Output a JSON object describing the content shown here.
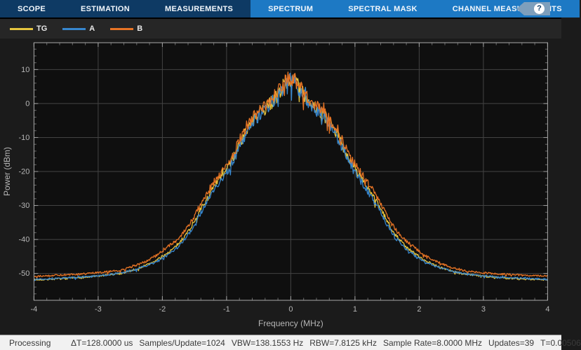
{
  "toolbar": {
    "tabs_inactive_left": [
      {
        "label": "SCOPE"
      },
      {
        "label": "ESTIMATION"
      },
      {
        "label": "MEASUREMENTS"
      }
    ],
    "tabs_active_group": [
      {
        "label": "SPECTRUM"
      },
      {
        "label": "SPECTRAL MASK"
      },
      {
        "label": "CHANNEL MEASUREMENTS"
      }
    ],
    "help_label": "?",
    "bg_color": "#0e3a64",
    "active_bg_color": "#1d79c4"
  },
  "legend": {
    "items": [
      {
        "label": "TG",
        "color": "#e7c63f"
      },
      {
        "label": "A",
        "color": "#3787cf"
      },
      {
        "label": "B",
        "color": "#e87425"
      }
    ]
  },
  "chart_data": {
    "type": "line",
    "title": "",
    "xlabel": "Frequency (MHz)",
    "ylabel": "Power (dBm)",
    "xlim": [
      -4,
      4
    ],
    "ylim": [
      -57.9,
      17.9
    ],
    "x_ticks": [
      -4,
      -3,
      -2,
      -1,
      0,
      1,
      2,
      3,
      4
    ],
    "y_ticks": [
      10,
      0,
      -10,
      -20,
      -30,
      -40,
      -50
    ],
    "x_minor_step": 0.2,
    "y_minor_step": 2,
    "grid": true,
    "legend_position": "top-left-bar",
    "plot_bg": "#0f0f0f",
    "grid_color": "#434343",
    "frame_color": "#a8a8a8",
    "tick_color": "#9e9e9e",
    "minor_tick_color": "#6a6a6a",
    "label_color": "#b6b6b6",
    "base_envelope": [
      [
        -4.0,
        -51.7
      ],
      [
        -3.6,
        -51.4
      ],
      [
        -3.2,
        -51.0
      ],
      [
        -2.9,
        -50.5
      ],
      [
        -2.65,
        -49.9
      ],
      [
        -2.45,
        -49.0
      ],
      [
        -2.25,
        -47.8
      ],
      [
        -2.1,
        -46.6
      ],
      [
        -1.95,
        -45.0
      ],
      [
        -1.8,
        -43.0
      ],
      [
        -1.65,
        -40.0
      ],
      [
        -1.55,
        -37.2
      ],
      [
        -1.45,
        -33.8
      ],
      [
        -1.35,
        -30.5
      ],
      [
        -1.25,
        -27.3
      ],
      [
        -1.15,
        -24.3
      ],
      [
        -1.05,
        -21.6
      ],
      [
        -0.95,
        -18.8
      ],
      [
        -0.87,
        -15.8
      ],
      [
        -0.8,
        -12.8
      ],
      [
        -0.73,
        -10.0
      ],
      [
        -0.66,
        -7.6
      ],
      [
        -0.58,
        -5.4
      ],
      [
        -0.5,
        -3.8
      ],
      [
        -0.42,
        -2.2
      ],
      [
        -0.34,
        -0.7
      ],
      [
        -0.26,
        0.9
      ],
      [
        -0.18,
        3.0
      ],
      [
        -0.1,
        5.2
      ],
      [
        -0.04,
        6.8
      ],
      [
        0.04,
        6.8
      ],
      [
        0.1,
        5.2
      ],
      [
        0.18,
        3.0
      ],
      [
        0.26,
        0.9
      ],
      [
        0.34,
        -0.7
      ],
      [
        0.42,
        -2.2
      ],
      [
        0.5,
        -3.8
      ],
      [
        0.58,
        -5.4
      ],
      [
        0.66,
        -7.6
      ],
      [
        0.73,
        -10.0
      ],
      [
        0.8,
        -12.8
      ],
      [
        0.87,
        -15.8
      ],
      [
        0.95,
        -18.8
      ],
      [
        1.05,
        -21.6
      ],
      [
        1.15,
        -24.3
      ],
      [
        1.25,
        -27.3
      ],
      [
        1.35,
        -30.5
      ],
      [
        1.45,
        -33.8
      ],
      [
        1.55,
        -37.2
      ],
      [
        1.65,
        -40.0
      ],
      [
        1.8,
        -43.0
      ],
      [
        1.95,
        -45.0
      ],
      [
        2.1,
        -46.6
      ],
      [
        2.25,
        -47.8
      ],
      [
        2.45,
        -49.0
      ],
      [
        2.65,
        -49.9
      ],
      [
        2.9,
        -50.5
      ],
      [
        3.2,
        -51.0
      ],
      [
        3.6,
        -51.4
      ],
      [
        4.0,
        -51.7
      ]
    ],
    "series": [
      {
        "name": "TG",
        "color": "#e7c63f",
        "seed": 7,
        "offset_points": [
          [
            -4,
            -0.2
          ],
          [
            -2.6,
            -0.1
          ],
          [
            -2.0,
            0.5
          ],
          [
            -1.6,
            1.0
          ],
          [
            -0.9,
            0.9
          ],
          [
            -0.6,
            0.5
          ],
          [
            -0.3,
            0.3
          ],
          [
            0,
            0.3
          ],
          [
            0.3,
            0.3
          ],
          [
            0.6,
            0.5
          ],
          [
            0.9,
            0.9
          ],
          [
            1.6,
            1.0
          ],
          [
            2.0,
            0.5
          ],
          [
            2.6,
            -0.1
          ],
          [
            4,
            -0.2
          ]
        ]
      },
      {
        "name": "A",
        "color": "#3787cf",
        "seed": 13,
        "offset_points": [
          [
            -4,
            0
          ],
          [
            4,
            0
          ]
        ]
      },
      {
        "name": "B",
        "color": "#e87425",
        "seed": 29,
        "offset_points": [
          [
            -4,
            0.9
          ],
          [
            -2.6,
            0.9
          ],
          [
            -2.2,
            1.5
          ],
          [
            -1.9,
            2.4
          ],
          [
            -1.2,
            2.6
          ],
          [
            -0.8,
            2.0
          ],
          [
            -0.5,
            1.3
          ],
          [
            -0.25,
            0.9
          ],
          [
            0,
            0.8
          ],
          [
            0.25,
            0.9
          ],
          [
            0.5,
            1.3
          ],
          [
            0.8,
            2.0
          ],
          [
            1.2,
            2.6
          ],
          [
            1.9,
            2.4
          ],
          [
            2.2,
            1.5
          ],
          [
            2.6,
            0.9
          ],
          [
            4,
            0.9
          ]
        ]
      }
    ],
    "noise": {
      "base_db": 0.25,
      "scale_db": 2.15,
      "floor_ref": -52,
      "range": 60,
      "exponent": 1.3,
      "spike_prob": 0.05
    }
  },
  "status_bar": {
    "state": "Processing",
    "fields": [
      "ΔT=128.0000 us",
      "Samples/Update=1024",
      "VBW=138.1553 Hz",
      "RBW=7.8125 kHz",
      "Sample Rate=8.0000 MHz",
      "Updates=39",
      "T=0.00506"
    ]
  }
}
